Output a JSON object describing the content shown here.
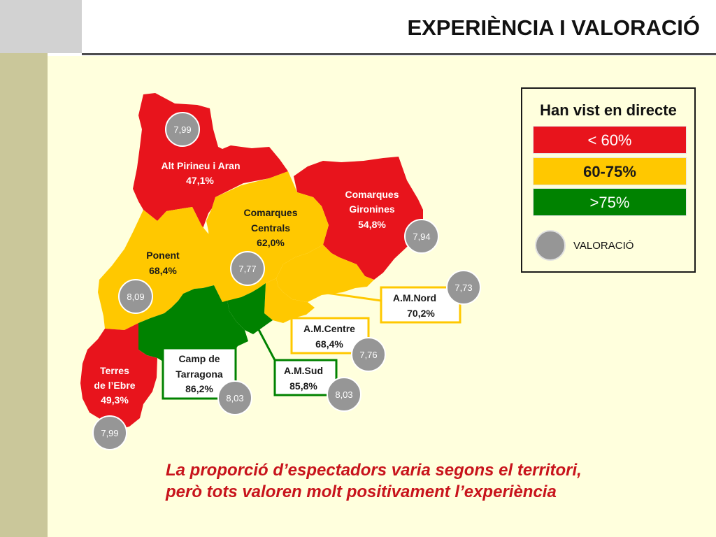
{
  "title": "EXPERIÈNCIA I VALORACIÓ",
  "colors": {
    "red": "#e8141c",
    "yellow": "#ffc800",
    "green": "#008200",
    "rating_circle": "#969696",
    "background": "#ffffdd"
  },
  "legend": {
    "title": "Han vist en directe",
    "red_label": "< 60%",
    "yellow_label": "60-75%",
    "green_label": ">75%",
    "circle_label": "VALORACIÓ"
  },
  "regions": {
    "alt_pirineu": {
      "name": "Alt Pirineu i Aran",
      "pct": "47,1%",
      "rating": "7,99",
      "color": "red"
    },
    "comarques_centrals": {
      "name_1": "Comarques",
      "name_2": "Centrals",
      "pct": "62,0%",
      "rating": "7,77",
      "color": "yellow"
    },
    "comarques_gironines": {
      "name_1": "Comarques",
      "name_2": "Gironines",
      "pct": "54,8%",
      "rating": "7,94",
      "color": "red"
    },
    "ponent": {
      "name": "Ponent",
      "pct": "68,4%",
      "rating": "8,09",
      "color": "yellow"
    },
    "am_nord": {
      "name": "A.M.Nord",
      "pct": "70,2%",
      "rating": "7,73",
      "color": "yellow"
    },
    "am_centre": {
      "name": "A.M.Centre",
      "pct": "68,4%",
      "rating": "7,76",
      "color": "yellow"
    },
    "camp_tarragona": {
      "name_1": "Camp de",
      "name_2": "Tarragona",
      "pct": "86,2%",
      "rating": "8,03",
      "color": "green"
    },
    "am_sud": {
      "name": "A.M.Sud",
      "pct": "85,8%",
      "rating": "8,03",
      "color": "green"
    },
    "terres_ebre": {
      "name_1": "Terres",
      "name_2": "de l’Ebre",
      "pct": "49,3%",
      "rating": "7,99",
      "color": "red"
    }
  },
  "conclusion": {
    "line_1": "La proporció d’espectadors varia segons el territori,",
    "line_2": "però tots valoren molt positivament l’experiència"
  }
}
